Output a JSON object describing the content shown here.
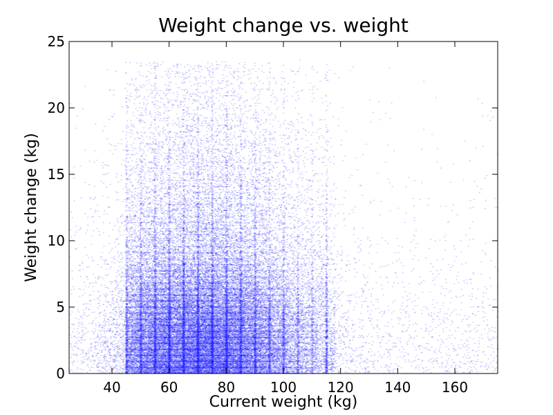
{
  "chart_data": {
    "type": "scatter",
    "title": "Weight change vs. weight",
    "xlabel": "Current weight (kg)",
    "ylabel": "Weight change (kg)",
    "xlim": [
      25,
      175
    ],
    "ylim": [
      0,
      25
    ],
    "xticks": [
      40,
      60,
      80,
      100,
      120,
      140,
      160
    ],
    "yticks": [
      0,
      5,
      10,
      15,
      20,
      25
    ],
    "grid": false,
    "legend": "none",
    "marker_color": "#0000ff",
    "marker_opacity": 0.2,
    "point_count": 60000,
    "distribution": {
      "x_mode": 72,
      "x_spread": 18,
      "y_mode": 3,
      "y_decay": 6,
      "x_range_dense": [
        45,
        118
      ],
      "heaping_values_x": [
        45,
        50,
        55,
        60,
        65,
        70,
        75,
        80,
        85,
        90,
        95,
        100,
        105,
        110,
        115
      ]
    }
  }
}
